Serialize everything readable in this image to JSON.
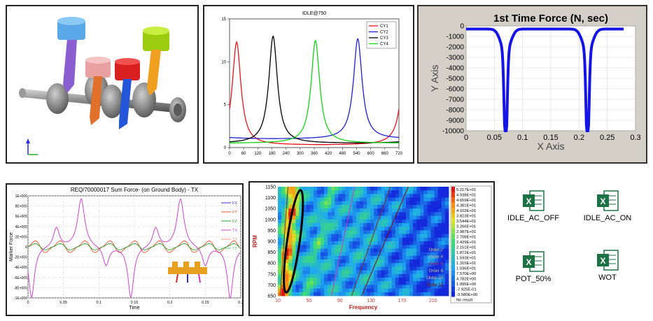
{
  "files": [
    {
      "label": "IDLE_AC_OFF"
    },
    {
      "label": "IDLE_AC_ON"
    },
    {
      "label": "POT_50%"
    },
    {
      "label": "WOT"
    }
  ],
  "colors": {
    "cy1": "#e8141c",
    "cy2": "#1f1fd0",
    "cy3": "#000000",
    "cy4": "#16d216",
    "force_line": "#1414e6",
    "excel_green": "#1d7245"
  },
  "chart_data": [
    {
      "type": "line",
      "title": "IDLE@750",
      "xlabel": "",
      "ylabel": "",
      "xlim": [
        0,
        720
      ],
      "ylim": [
        0,
        15
      ],
      "x_ticks": [
        "0",
        "60",
        "120",
        "180",
        "240",
        "300",
        "360",
        "420",
        "480",
        "540",
        "600",
        "660",
        "720"
      ],
      "y_ticks": [
        "0",
        "5",
        "10",
        "15"
      ],
      "legend": [
        "CY1",
        "CY2",
        "CY3",
        "CY4"
      ],
      "legend_position": "top-right",
      "series": [
        {
          "name": "CY1",
          "peak_x": 30,
          "peak_y": 12.3,
          "base": 0.3
        },
        {
          "name": "CY2",
          "peak_x": 545,
          "peak_y": 12.7,
          "base": 1.0
        },
        {
          "name": "CY3",
          "peak_x": 185,
          "peak_y": 13.0,
          "base": 0.5
        },
        {
          "name": "CY4",
          "peak_x": 365,
          "peak_y": 12.5,
          "base": 0.5
        }
      ]
    },
    {
      "type": "line",
      "title": "1st Time Force (N, sec)",
      "xlabel": "X Axis",
      "ylabel": "Y Axis",
      "xlim": [
        0,
        0.3
      ],
      "ylim": [
        -10000,
        0
      ],
      "x_ticks": [
        "0",
        "0.05",
        "0.1",
        "0.15",
        "0.2",
        "0.25",
        "0.3"
      ],
      "y_ticks": [
        "0",
        "-1000",
        "-2000",
        "-3000",
        "-4000",
        "-5000",
        "-6000",
        "-7000",
        "-8000",
        "-9000",
        "-10000"
      ],
      "series": [
        {
          "name": "force",
          "dips": [
            0.07,
            0.215
          ],
          "min": -10000,
          "baseline": -300,
          "x_end": 0.28
        }
      ]
    },
    {
      "type": "line",
      "title": "REQ/70000017 Sum Force- (on Ground Body) - TX",
      "xlabel": "Time",
      "ylabel": "Marker Force",
      "xlim": [
        0,
        0.3
      ],
      "ylim": [
        -1000000,
        1000000
      ],
      "x_ticks": [
        "0",
        "0.05",
        "0.1",
        "0.15",
        "0.2",
        "0.25",
        "0.3"
      ],
      "y_ticks": [
        "1E+006",
        "8E+005",
        "6E+005",
        "4E+005",
        "2E+005",
        "0",
        "-2E+005",
        "-4E+005",
        "-6E+005",
        "-8E+005",
        "-1E+006"
      ],
      "legend": [
        "FX",
        "FY",
        "FZ",
        "TX",
        "TY",
        "TZ"
      ],
      "legend_position": "top-right",
      "series": [
        {
          "name": "TX",
          "color": "#cc44cc",
          "peaks": [
            0.075,
            0.215
          ],
          "peak": 950000,
          "troughs": [
            0.005,
            0.145,
            0.285
          ],
          "trough": -1000000
        },
        {
          "name": "FX",
          "color": "#e85030",
          "amp": 150000
        },
        {
          "name": "FZ",
          "color": "#30a030",
          "amp": 80000
        }
      ]
    },
    {
      "type": "heatmap",
      "title": "",
      "xlabel": "Frequency",
      "ylabel": "RPM",
      "xlim": [
        10,
        230
      ],
      "ylim": [
        650,
        1150
      ],
      "x_ticks": [
        "10",
        "50",
        "90",
        "130",
        "170",
        "210"
      ],
      "y_ticks": [
        "1150",
        "1100",
        "1050",
        "1000",
        "950",
        "900",
        "850",
        "800",
        "750",
        "700",
        "650"
      ],
      "order_labels": [
        "Order 2",
        "Order 4",
        "Order 6",
        "Order 8",
        "Order 10",
        "Order 12"
      ],
      "colorbar": [
        "5.217E+01",
        "4.938E+01",
        "4.659E+01",
        "4.381E+01",
        "4.102E+01",
        "3.823E+01",
        "3.544E+01",
        "3.266E+01",
        "2.987E+01",
        "2.708E+01",
        "2.429E+01",
        "2.151E+01",
        "1.872E+01",
        "1.593E+01",
        "1.315E+01",
        "1.036E+01",
        "7.570E+00",
        "4.782E+00",
        "1.995E+00",
        "-7.925E-01",
        "-3.580E+00",
        "No result"
      ]
    }
  ]
}
